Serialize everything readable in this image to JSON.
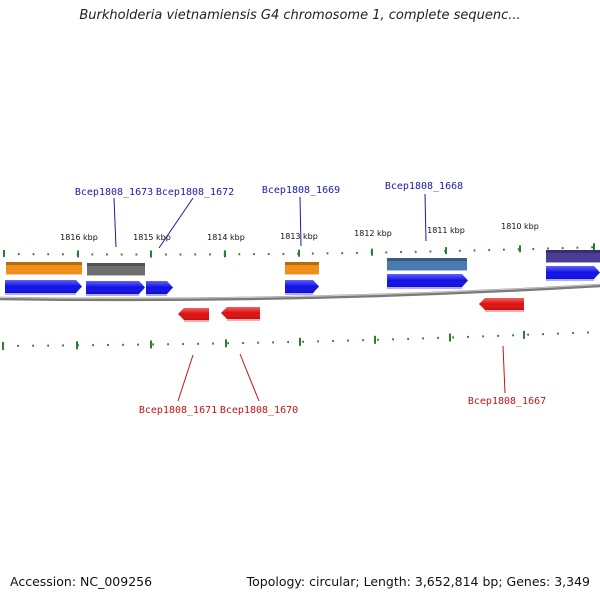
{
  "title": "Burkholderia vietnamiensis G4 chromosome 1, complete sequenc...",
  "footer": {
    "accession": "Accession: NC_009256",
    "summary": "Topology: circular; Length: 3,652,814 bp; Genes: 3,349"
  },
  "colors": {
    "backbone": "#808080",
    "tick": "#2e7d32",
    "forward_gene": "#1010e8",
    "reverse_gene": "#e01010",
    "forward_label": "#1a1aa6",
    "reverse_label": "#c41414"
  },
  "ticks": [
    "1816 kbp",
    "1815 kbp",
    "1814 kbp",
    "1813 kbp",
    "1812 kbp",
    "1811 kbp",
    "1810 kbp"
  ],
  "features_top": [
    {
      "color": "#f0901a"
    },
    {
      "color": "#6e6e6e"
    },
    {
      "color": "#f0901a"
    },
    {
      "color": "#4a7ab0"
    },
    {
      "color": "#4b3c96"
    }
  ],
  "genes_forward": [
    "Bcep1808_1673",
    "Bcep1808_1672",
    "Bcep1808_1669",
    "Bcep1808_1668"
  ],
  "genes_reverse": [
    "Bcep1808_1671",
    "Bcep1808_1670",
    "Bcep1808_1667"
  ]
}
